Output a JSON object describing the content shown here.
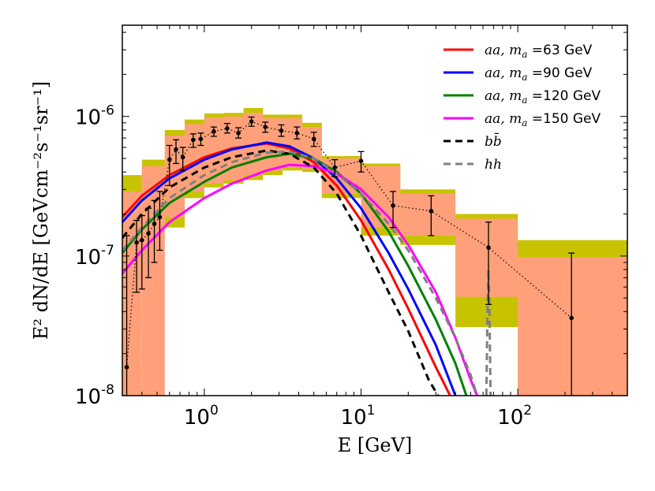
{
  "chart_data": {
    "type": "line",
    "xlabel": "E [GeV]",
    "ylabel": "E² dN/dE [GeVcm⁻²s⁻¹sr⁻¹]",
    "xscale": "log",
    "yscale": "log",
    "xlim": [
      0.3,
      500
    ],
    "ylim": [
      1e-08,
      4.5e-06
    ],
    "xticks": [
      {
        "value": 1,
        "base": "10",
        "exp": "0"
      },
      {
        "value": 10,
        "base": "10",
        "exp": "1"
      },
      {
        "value": 100,
        "base": "10",
        "exp": "2"
      }
    ],
    "yticks": [
      {
        "value": 1e-08,
        "base": "10",
        "exp": "-8"
      },
      {
        "value": 1e-07,
        "base": "10",
        "exp": "-7"
      },
      {
        "value": 1e-06,
        "base": "10",
        "exp": "-6"
      }
    ],
    "legend_position": "top-right",
    "colors": {
      "band_outer": "#c8c300",
      "band_inner": "#ffa07a",
      "points": "#000000"
    },
    "bands": [
      {
        "x0": 0.3,
        "x1": 0.4,
        "ymin": 2.5e-07,
        "ymax": 3.8e-07,
        "inner_min": 1e-08,
        "inner_max": 2.9e-07
      },
      {
        "x0": 0.4,
        "x1": 0.56,
        "ymin": 2.5e-07,
        "ymax": 4.9e-07,
        "inner_min": 1e-08,
        "inner_max": 4.4e-07
      },
      {
        "x0": 0.56,
        "x1": 0.75,
        "ymin": 1.6e-07,
        "ymax": 8e-07,
        "inner_min": 1.9e-07,
        "inner_max": 7.3e-07
      },
      {
        "x0": 0.75,
        "x1": 1.0,
        "ymin": 2.6e-07,
        "ymax": 9.5e-07,
        "inner_min": 2.9e-07,
        "inner_max": 8.8e-07
      },
      {
        "x0": 1.0,
        "x1": 1.33,
        "ymin": 3.1e-07,
        "ymax": 1.05e-06,
        "inner_min": 3.3e-07,
        "inner_max": 9.8e-07
      },
      {
        "x0": 1.33,
        "x1": 1.78,
        "ymin": 3.3e-07,
        "ymax": 1.06e-06,
        "inner_min": 3.5e-07,
        "inner_max": 1e-06
      },
      {
        "x0": 1.78,
        "x1": 2.37,
        "ymin": 3.5e-07,
        "ymax": 1.15e-06,
        "inner_min": 3.8e-07,
        "inner_max": 1.06e-06
      },
      {
        "x0": 2.37,
        "x1": 3.16,
        "ymin": 3.8e-07,
        "ymax": 1.03e-06,
        "inner_min": 4.1e-07,
        "inner_max": 9.7e-07
      },
      {
        "x0": 3.16,
        "x1": 4.22,
        "ymin": 4.1e-07,
        "ymax": 1.03e-06,
        "inner_min": 4.3e-07,
        "inner_max": 9.7e-07
      },
      {
        "x0": 4.22,
        "x1": 5.62,
        "ymin": 4e-07,
        "ymax": 9e-07,
        "inner_min": 4.2e-07,
        "inner_max": 8.4e-07
      },
      {
        "x0": 5.62,
        "x1": 10.0,
        "ymin": 2.6e-07,
        "ymax": 5.2e-07,
        "inner_min": 2.8e-07,
        "inner_max": 5e-07
      },
      {
        "x0": 10.0,
        "x1": 17.8,
        "ymin": 1.4e-07,
        "ymax": 4.6e-07,
        "inner_min": 1.6e-07,
        "inner_max": 4.4e-07
      },
      {
        "x0": 17.8,
        "x1": 40.0,
        "ymin": 1.2e-07,
        "ymax": 3e-07,
        "inner_min": 1.4e-07,
        "inner_max": 2.8e-07
      },
      {
        "x0": 40.0,
        "x1": 100.0,
        "ymin": 3.1e-08,
        "ymax": 2e-07,
        "inner_min": 5.1e-08,
        "inner_max": 1.85e-07
      },
      {
        "x0": 100.0,
        "x1": 500.0,
        "ymin": 1e-08,
        "ymax": 1.3e-07,
        "inner_min": 1e-08,
        "inner_max": 9.8e-08
      }
    ],
    "data_points": [
      {
        "x": 0.32,
        "y": 1.6e-08,
        "lo": 1e-08,
        "hi": 1.4e-07
      },
      {
        "x": 0.37,
        "y": 1.25e-07,
        "lo": 5.5e-08,
        "hi": 1.8e-07
      },
      {
        "x": 0.4,
        "y": 1.3e-07,
        "lo": 5.8e-08,
        "hi": 1.95e-07
      },
      {
        "x": 0.44,
        "y": 1.45e-07,
        "lo": 7e-08,
        "hi": 2.2e-07
      },
      {
        "x": 0.48,
        "y": 1.7e-07,
        "lo": 9e-08,
        "hi": 2.5e-07
      },
      {
        "x": 0.52,
        "y": 1.9e-07,
        "lo": 1.1e-07,
        "hi": 2.9e-07
      },
      {
        "x": 0.6,
        "y": 4.9e-07,
        "lo": 3.2e-07,
        "hi": 6.2e-07
      },
      {
        "x": 0.66,
        "y": 5.8e-07,
        "lo": 4.6e-07,
        "hi": 6.8e-07
      },
      {
        "x": 0.73,
        "y": 5.1e-07,
        "lo": 4.1e-07,
        "hi": 6e-07
      },
      {
        "x": 0.85,
        "y": 6.8e-07,
        "lo": 6e-07,
        "hi": 7.5e-07
      },
      {
        "x": 0.95,
        "y": 6.9e-07,
        "lo": 6.2e-07,
        "hi": 7.6e-07
      },
      {
        "x": 1.15,
        "y": 7.8e-07,
        "lo": 7.2e-07,
        "hi": 8.4e-07
      },
      {
        "x": 1.4,
        "y": 8.2e-07,
        "lo": 7.6e-07,
        "hi": 8.9e-07
      },
      {
        "x": 1.65,
        "y": 7.6e-07,
        "lo": 7e-07,
        "hi": 8.3e-07
      },
      {
        "x": 2.0,
        "y": 9.2e-07,
        "lo": 8.5e-07,
        "hi": 9.9e-07
      },
      {
        "x": 2.45,
        "y": 8.4e-07,
        "lo": 7.7e-07,
        "hi": 9.1e-07
      },
      {
        "x": 3.1,
        "y": 7.9e-07,
        "lo": 7.2e-07,
        "hi": 8.7e-07
      },
      {
        "x": 3.9,
        "y": 7.6e-07,
        "lo": 6.9e-07,
        "hi": 8.4e-07
      },
      {
        "x": 5.0,
        "y": 6.9e-07,
        "lo": 6.1e-07,
        "hi": 7.7e-07
      },
      {
        "x": 6.8,
        "y": 4.3e-07,
        "lo": 3.7e-07,
        "hi": 4.9e-07
      },
      {
        "x": 10.0,
        "y": 4.8e-07,
        "lo": 4e-07,
        "hi": 5.6e-07
      },
      {
        "x": 16.0,
        "y": 2.3e-07,
        "lo": 1.6e-07,
        "hi": 2.9e-07
      },
      {
        "x": 28.0,
        "y": 2.1e-07,
        "lo": 1.4e-07,
        "hi": 2.7e-07
      },
      {
        "x": 65.0,
        "y": 1.15e-07,
        "lo": 4.5e-08,
        "hi": 1.75e-07
      },
      {
        "x": 220.0,
        "y": 3.6e-08,
        "lo": 1e-08,
        "hi": 1.05e-07
      }
    ],
    "series": [
      {
        "legend": "aa, m_a =63 GeV",
        "legend_main": "aa, m",
        "legend_sub": "a",
        "legend_rest": " =63 GeV",
        "color": "#ff0000",
        "dash": "solid",
        "points": [
          [
            0.3,
            1.9e-07
          ],
          [
            0.4,
            2.7e-07
          ],
          [
            0.6,
            3.8e-07
          ],
          [
            1.0,
            5.1e-07
          ],
          [
            1.5,
            5.9e-07
          ],
          [
            2.5,
            6.4e-07
          ],
          [
            3.5,
            5.9e-07
          ],
          [
            5.0,
            4.7e-07
          ],
          [
            7.0,
            3.2e-07
          ],
          [
            10.0,
            1.8e-07
          ],
          [
            15.0,
            8e-08
          ],
          [
            20.0,
            4.2e-08
          ],
          [
            30.0,
            1.6e-08
          ],
          [
            37.0,
            1e-08
          ]
        ]
      },
      {
        "legend": "aa, m_a =90 GeV",
        "legend_main": "aa, m",
        "legend_sub": "a",
        "legend_rest": " =90 GeV",
        "color": "#0000ff",
        "dash": "solid",
        "points": [
          [
            0.3,
            1.75e-07
          ],
          [
            0.4,
            2.5e-07
          ],
          [
            0.6,
            3.6e-07
          ],
          [
            1.0,
            4.9e-07
          ],
          [
            1.5,
            5.8e-07
          ],
          [
            2.5,
            6.5e-07
          ],
          [
            3.5,
            6.1e-07
          ],
          [
            5.0,
            5e-07
          ],
          [
            7.0,
            3.6e-07
          ],
          [
            10.0,
            2.2e-07
          ],
          [
            15.0,
            1.05e-07
          ],
          [
            20.0,
            5.8e-08
          ],
          [
            30.0,
            2.3e-08
          ],
          [
            40.0,
            1e-08
          ]
        ]
      },
      {
        "legend": "aa, m_a =120 GeV",
        "legend_main": "aa, m",
        "legend_sub": "a",
        "legend_rest": " =120 GeV",
        "color": "#008000",
        "dash": "solid",
        "points": [
          [
            0.3,
            1.05e-07
          ],
          [
            0.4,
            1.55e-07
          ],
          [
            0.6,
            2.4e-07
          ],
          [
            1.0,
            3.4e-07
          ],
          [
            1.5,
            4.3e-07
          ],
          [
            2.5,
            5.1e-07
          ],
          [
            3.5,
            5.4e-07
          ],
          [
            5.0,
            5e-07
          ],
          [
            7.0,
            4e-07
          ],
          [
            10.0,
            2.8e-07
          ],
          [
            15.0,
            1.5e-07
          ],
          [
            20.0,
            8.5e-08
          ],
          [
            30.0,
            3.5e-08
          ],
          [
            40.0,
            1.7e-08
          ],
          [
            47.0,
            1e-08
          ]
        ]
      },
      {
        "legend": "aa, m_a =150 GeV",
        "legend_main": "aa, m",
        "legend_sub": "a",
        "legend_rest": " =150 GeV",
        "color": "#ff00ff",
        "dash": "solid",
        "points": [
          [
            0.3,
            7.5e-08
          ],
          [
            0.4,
            1.1e-07
          ],
          [
            0.6,
            1.75e-07
          ],
          [
            1.0,
            2.6e-07
          ],
          [
            1.5,
            3.3e-07
          ],
          [
            2.5,
            4.1e-07
          ],
          [
            3.5,
            4.5e-07
          ],
          [
            5.0,
            4.4e-07
          ],
          [
            7.0,
            3.9e-07
          ],
          [
            10.0,
            3e-07
          ],
          [
            15.0,
            1.9e-07
          ],
          [
            20.0,
            1.2e-07
          ],
          [
            30.0,
            5.5e-08
          ],
          [
            40.0,
            2.6e-08
          ],
          [
            50.0,
            1.3e-08
          ],
          [
            55.0,
            1e-08
          ]
        ]
      },
      {
        "legend": "bb̄",
        "legend_main": "bb̄",
        "legend_sub": "",
        "legend_rest": "",
        "color": "#000000",
        "dash": "dashed",
        "points": [
          [
            0.3,
            1.35e-07
          ],
          [
            0.4,
            2e-07
          ],
          [
            0.6,
            3.1e-07
          ],
          [
            1.0,
            4.3e-07
          ],
          [
            1.5,
            5.1e-07
          ],
          [
            2.5,
            5.7e-07
          ],
          [
            3.5,
            5.4e-07
          ],
          [
            5.0,
            4.3e-07
          ],
          [
            7.0,
            2.8e-07
          ],
          [
            10.0,
            1.4e-07
          ],
          [
            15.0,
            5.5e-08
          ],
          [
            20.0,
            2.9e-08
          ],
          [
            27.0,
            1.3e-08
          ],
          [
            31.0,
            1e-08
          ]
        ]
      },
      {
        "legend": "hh",
        "legend_main": "hh",
        "legend_sub": "",
        "legend_rest": "",
        "color": "#808080",
        "dash": "dashed",
        "points": [
          [
            0.3,
            1.1e-07
          ],
          [
            0.4,
            1.6e-07
          ],
          [
            0.6,
            2.6e-07
          ],
          [
            1.0,
            3.8e-07
          ],
          [
            1.5,
            4.7e-07
          ],
          [
            2.5,
            5.5e-07
          ],
          [
            3.5,
            5.6e-07
          ],
          [
            5.0,
            5e-07
          ],
          [
            7.0,
            3.9e-07
          ],
          [
            10.0,
            2.8e-07
          ],
          [
            15.0,
            1.7e-07
          ],
          [
            20.0,
            1.1e-07
          ],
          [
            30.0,
            5e-08
          ],
          [
            40.0,
            2.6e-08
          ],
          [
            50.0,
            1.4e-08
          ],
          [
            55.0,
            1e-08
          ]
        ],
        "extra_points": [
          [
            63.0,
            1e-08
          ],
          [
            64.0,
            4e-08
          ],
          [
            65.0,
            8e-08
          ],
          [
            66.0,
            4e-08
          ],
          [
            67.0,
            1e-08
          ]
        ]
      }
    ]
  }
}
